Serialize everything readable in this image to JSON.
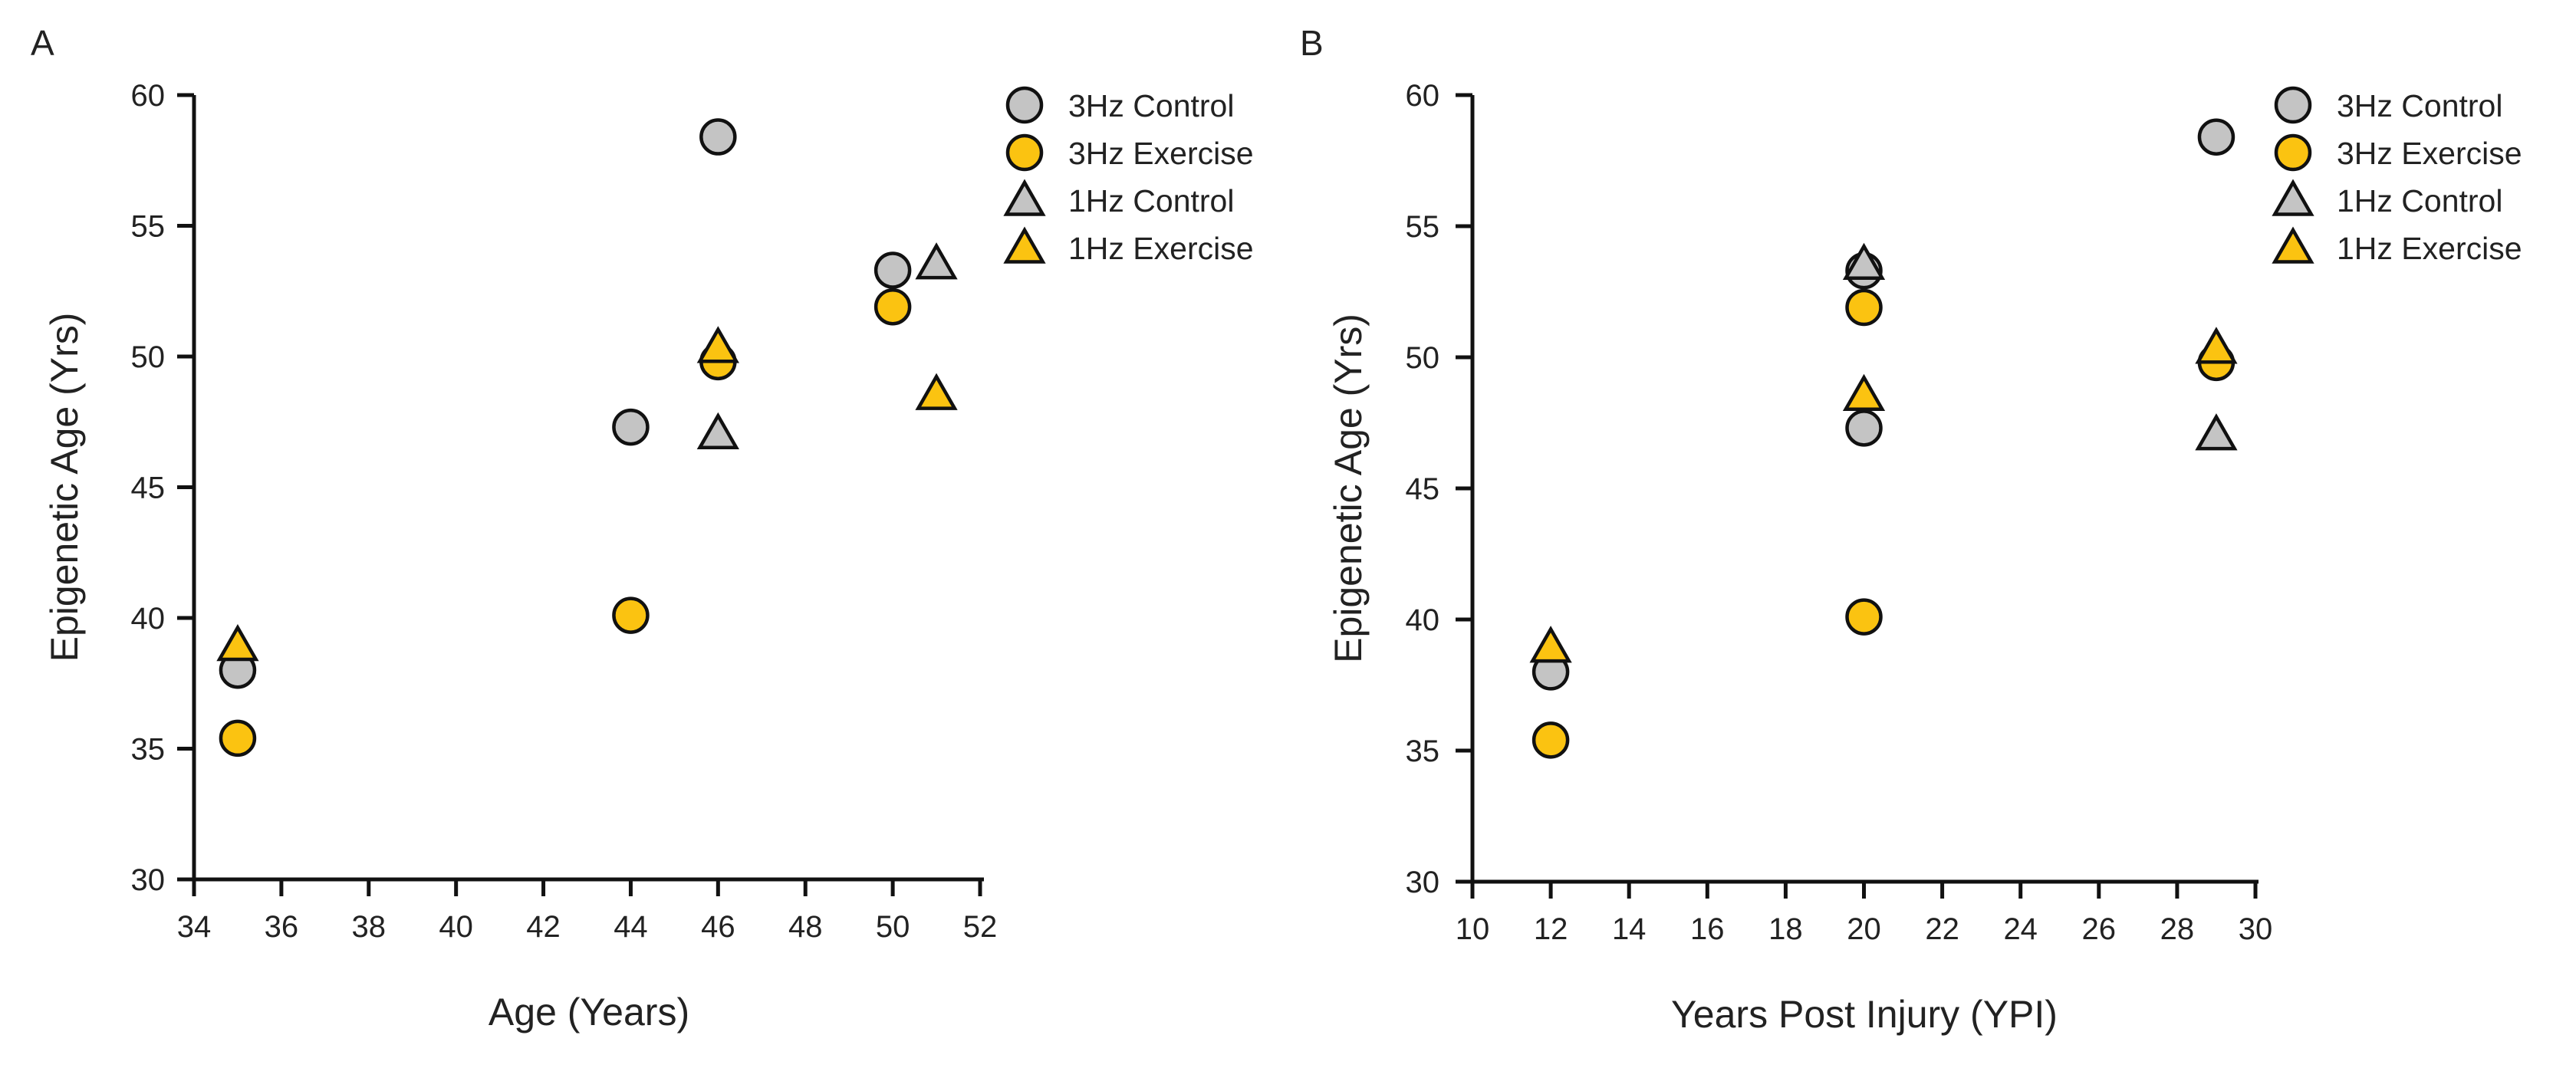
{
  "colors": {
    "control": "#c4c4c4",
    "exercise": "#fbc311",
    "stroke": "#111111"
  },
  "chart_data": [
    {
      "panel": "A",
      "type": "scatter",
      "xlabel": "Age (Years)",
      "ylabel": "Epigenetic Age (Yrs)",
      "xlim": [
        34,
        52
      ],
      "ylim": [
        30,
        60
      ],
      "xticks": [
        34,
        36,
        38,
        40,
        42,
        44,
        46,
        48,
        50,
        52
      ],
      "yticks": [
        30,
        35,
        40,
        45,
        50,
        55,
        60
      ],
      "legend_position": "top-right",
      "series": [
        {
          "name": "3Hz Control",
          "marker": "circle",
          "color": "control",
          "points": [
            [
              35,
              38.0
            ],
            [
              44,
              47.3
            ],
            [
              46,
              58.4
            ],
            [
              50,
              53.3
            ]
          ]
        },
        {
          "name": "3Hz Exercise",
          "marker": "circle",
          "color": "exercise",
          "points": [
            [
              35,
              35.4
            ],
            [
              44,
              40.1
            ],
            [
              46,
              49.8
            ],
            [
              50,
              51.9
            ]
          ]
        },
        {
          "name": "1Hz Control",
          "marker": "triangle",
          "color": "control",
          "points": [
            [
              46,
              47.0
            ],
            [
              51,
              53.5
            ]
          ]
        },
        {
          "name": "1Hz Exercise",
          "marker": "triangle",
          "color": "exercise",
          "points": [
            [
              35,
              38.9
            ],
            [
              46,
              50.3
            ],
            [
              51,
              48.5
            ]
          ]
        }
      ]
    },
    {
      "panel": "B",
      "type": "scatter",
      "xlabel": "Years Post Injury (YPI)",
      "ylabel": "Epigenetic Age (Yrs)",
      "xlim": [
        10,
        30
      ],
      "ylim": [
        30,
        60
      ],
      "xticks": [
        10,
        12,
        14,
        16,
        18,
        20,
        22,
        24,
        26,
        28,
        30
      ],
      "yticks": [
        30,
        35,
        40,
        45,
        50,
        55,
        60
      ],
      "legend_position": "top-right",
      "series": [
        {
          "name": "3Hz Control",
          "marker": "circle",
          "color": "control",
          "points": [
            [
              12,
              38.0
            ],
            [
              20,
              47.3
            ],
            [
              20,
              53.3
            ],
            [
              29,
              58.4
            ]
          ]
        },
        {
          "name": "3Hz Exercise",
          "marker": "circle",
          "color": "exercise",
          "points": [
            [
              12,
              35.4
            ],
            [
              20,
              40.1
            ],
            [
              20,
              51.9
            ],
            [
              29,
              49.8
            ]
          ]
        },
        {
          "name": "1Hz Control",
          "marker": "triangle",
          "color": "control",
          "points": [
            [
              20,
              53.5
            ],
            [
              29,
              47.0
            ]
          ]
        },
        {
          "name": "1Hz Exercise",
          "marker": "triangle",
          "color": "exercise",
          "points": [
            [
              12,
              38.9
            ],
            [
              20,
              48.5
            ],
            [
              29,
              50.3
            ]
          ]
        }
      ]
    }
  ]
}
